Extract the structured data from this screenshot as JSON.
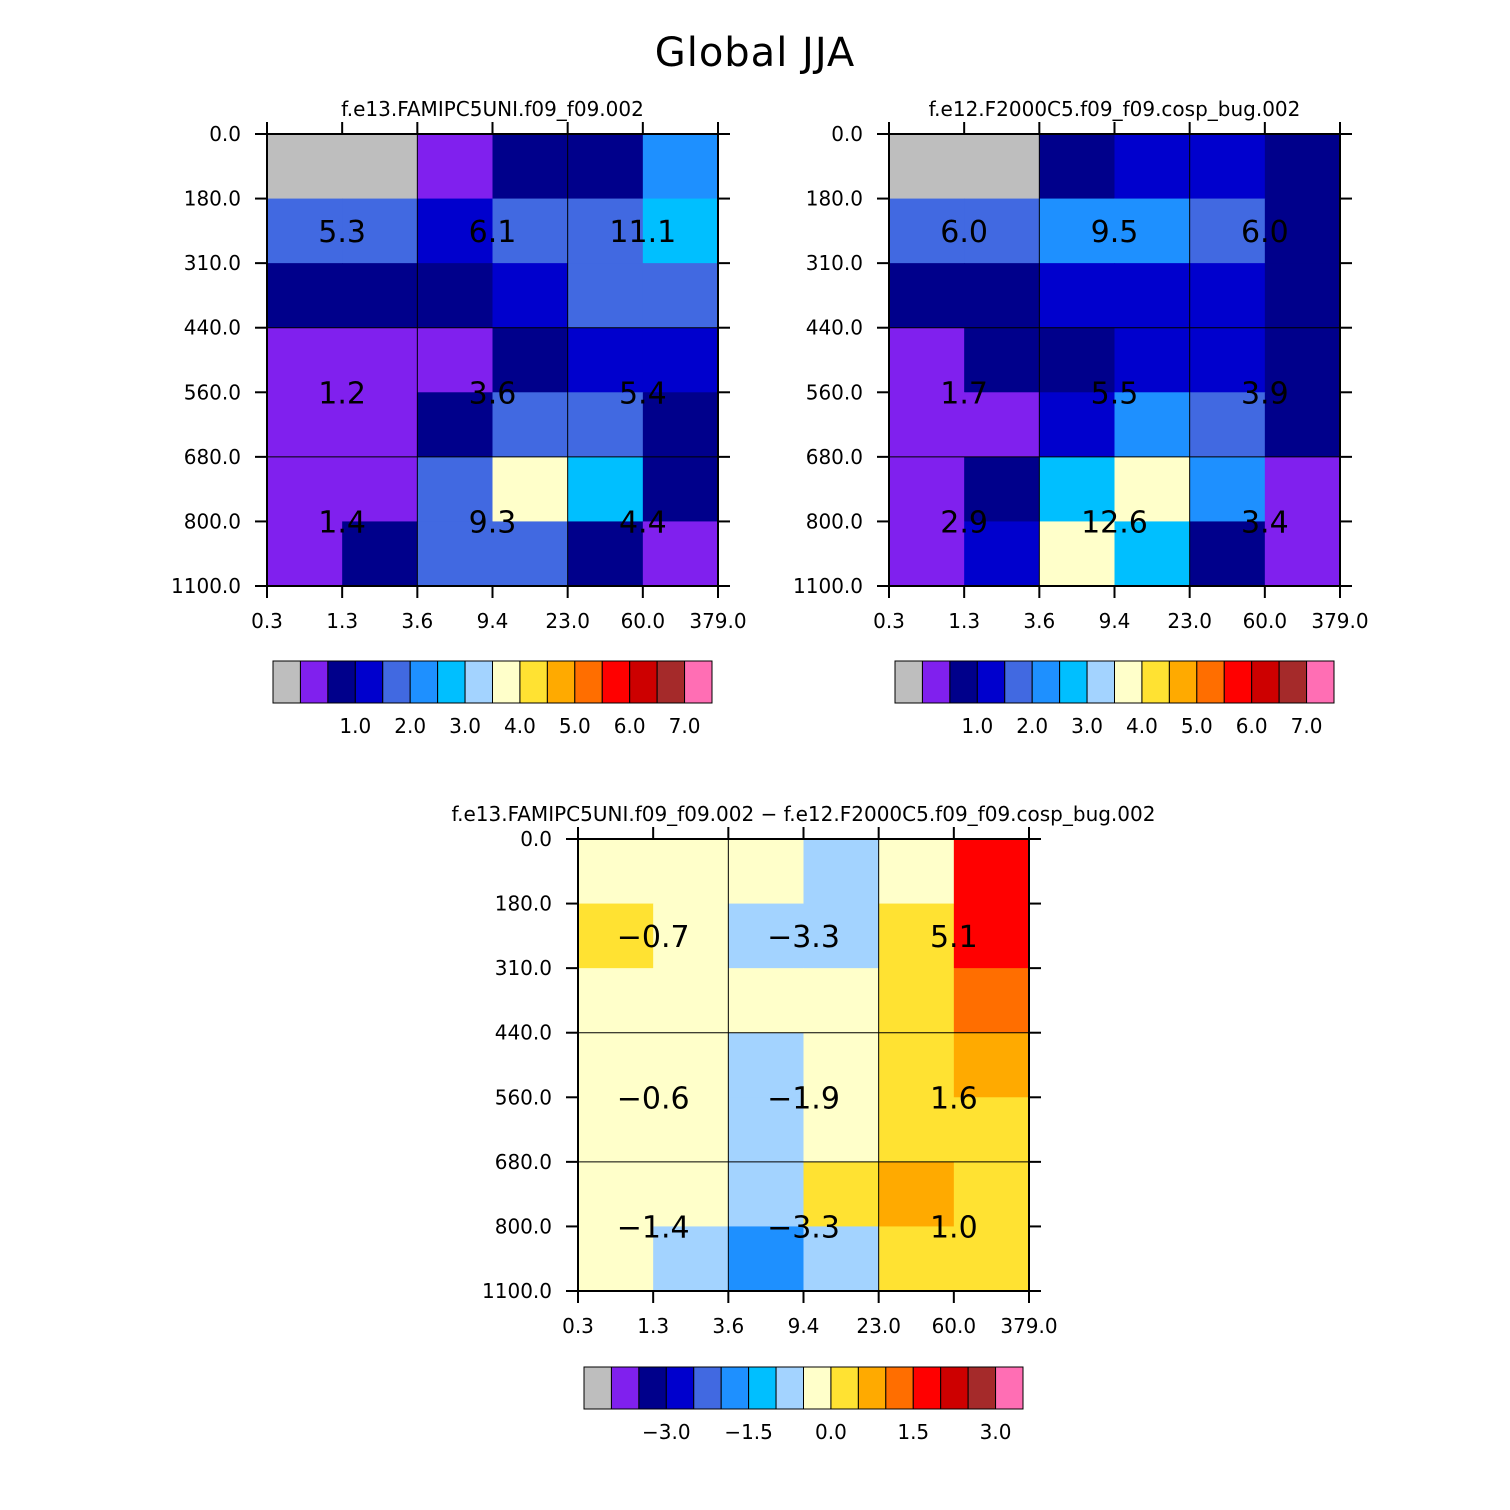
{
  "title": "Global JJA",
  "colormap": {
    "palette": [
      "#bebebe",
      "#8020ee",
      "#00008b",
      "#0000cd",
      "#4169e1",
      "#1e90ff",
      "#00bfff",
      "#a3d3ff",
      "#ffffca",
      "#ffe232",
      "#ffaa00",
      "#ff6e00",
      "#ff0000",
      "#cd0000",
      "#a52a2a",
      "#ff6eb4"
    ],
    "levels_abs": [
      0.5,
      1.0,
      1.5,
      2.0,
      2.5,
      3.0,
      3.5,
      4.0,
      4.5,
      5.0,
      5.5,
      6.0,
      6.5,
      7.0
    ],
    "levels_diff": [
      -3.5,
      -3.0,
      -2.5,
      -2.0,
      -1.5,
      -1.0,
      -0.5,
      0.0,
      0.5,
      1.0,
      1.5,
      2.0,
      2.5,
      3.0
    ]
  },
  "chart_data": [
    {
      "type": "heatmap",
      "title": "f.e13.FAMIPC5UNI.f09_f09.002",
      "x_tick_labels": [
        "0.3",
        "1.3",
        "3.6",
        "9.4",
        "23.0",
        "60.0",
        "379.0"
      ],
      "y_tick_labels": [
        "0.0",
        "180.0",
        "310.0",
        "440.0",
        "560.0",
        "680.0",
        "800.0",
        "1100.0"
      ],
      "grid": [
        [
          0,
          0,
          0.2,
          0.8,
          0.9,
          2.3
        ],
        [
          1.8,
          1.8,
          1.2,
          1.8,
          1.8,
          2.9
        ],
        [
          0.9,
          0.9,
          0.9,
          1.2,
          1.8,
          1.8
        ],
        [
          0.3,
          0.3,
          0.3,
          0.9,
          1.3,
          1.3
        ],
        [
          0.3,
          0.3,
          0.9,
          1.9,
          1.9,
          0.9
        ],
        [
          0.3,
          0.3,
          1.9,
          3.8,
          2.8,
          0.9
        ],
        [
          0.3,
          0.9,
          1.9,
          1.9,
          0.9,
          0.3
        ]
      ],
      "box_values": [
        [
          "5.3",
          "6.1",
          "11.1"
        ],
        [
          "1.2",
          "3.6",
          "5.4"
        ],
        [
          "1.4",
          "9.3",
          "4.4"
        ]
      ],
      "colorbar_labels": [
        "1.0",
        "2.0",
        "3.0",
        "4.0",
        "5.0",
        "6.0",
        "7.0"
      ],
      "colorbar_label_levels": [
        1.0,
        2.0,
        3.0,
        4.0,
        5.0,
        6.0,
        7.0
      ]
    },
    {
      "type": "heatmap",
      "title": "f.e12.F2000C5.f09_f09.cosp_bug.002",
      "x_tick_labels": [
        "0.3",
        "1.3",
        "3.6",
        "9.4",
        "23.0",
        "60.0",
        "379.0"
      ],
      "y_tick_labels": [
        "0.0",
        "180.0",
        "310.0",
        "440.0",
        "560.0",
        "680.0",
        "800.0",
        "1100.0"
      ],
      "grid": [
        [
          0,
          0,
          0.9,
          1.3,
          1.3,
          0.9
        ],
        [
          1.8,
          1.8,
          2.3,
          2.3,
          1.8,
          0.9
        ],
        [
          0.9,
          0.9,
          1.3,
          1.3,
          1.3,
          0.9
        ],
        [
          0.3,
          0.9,
          0.9,
          1.3,
          1.3,
          0.9
        ],
        [
          0.3,
          0.3,
          1.3,
          2.3,
          1.8,
          0.9
        ],
        [
          0.3,
          0.9,
          2.8,
          3.8,
          2.3,
          0.3
        ],
        [
          0.3,
          1.3,
          3.8,
          2.8,
          0.9,
          0.3
        ]
      ],
      "box_values": [
        [
          "6.0",
          "9.5",
          "6.0"
        ],
        [
          "1.7",
          "5.5",
          "3.9"
        ],
        [
          "2.9",
          "12.6",
          "3.4"
        ]
      ],
      "colorbar_labels": [
        "1.0",
        "2.0",
        "3.0",
        "4.0",
        "5.0",
        "6.0",
        "7.0"
      ],
      "colorbar_label_levels": [
        1.0,
        2.0,
        3.0,
        4.0,
        5.0,
        6.0,
        7.0
      ]
    },
    {
      "type": "heatmap",
      "title": "f.e13.FAMIPC5UNI.f09_f09.002 − f.e12.F2000C5.f09_f09.cosp_bug.002",
      "x_tick_labels": [
        "0.3",
        "1.3",
        "3.6",
        "9.4",
        "23.0",
        "60.0",
        "379.0"
      ],
      "y_tick_labels": [
        "0.0",
        "180.0",
        "310.0",
        "440.0",
        "560.0",
        "680.0",
        "800.0",
        "1100.0"
      ],
      "grid": [
        [
          -0.3,
          -0.3,
          -0.3,
          -0.8,
          -0.3,
          1.8
        ],
        [
          0.2,
          -0.3,
          -0.8,
          -0.8,
          0.2,
          1.8
        ],
        [
          -0.3,
          -0.3,
          -0.3,
          -0.3,
          0.2,
          1.3
        ],
        [
          -0.3,
          -0.3,
          -0.8,
          -0.3,
          0.2,
          0.8
        ],
        [
          -0.3,
          -0.3,
          -0.8,
          -0.3,
          0.2,
          0.2
        ],
        [
          -0.3,
          -0.3,
          -0.8,
          0.2,
          0.8,
          0.2
        ],
        [
          -0.3,
          -0.8,
          -1.8,
          -0.8,
          0.2,
          0.2
        ]
      ],
      "box_values": [
        [
          "−0.7",
          "−3.3",
          "5.1"
        ],
        [
          "−0.6",
          "−1.9",
          "1.6"
        ],
        [
          "−1.4",
          "−3.3",
          "1.0"
        ]
      ],
      "colorbar_labels": [
        "−3.0",
        "−1.5",
        "0.0",
        "1.5",
        "3.0"
      ],
      "colorbar_label_levels": [
        -3.0,
        -1.5,
        0.0,
        1.5,
        3.0
      ]
    }
  ]
}
